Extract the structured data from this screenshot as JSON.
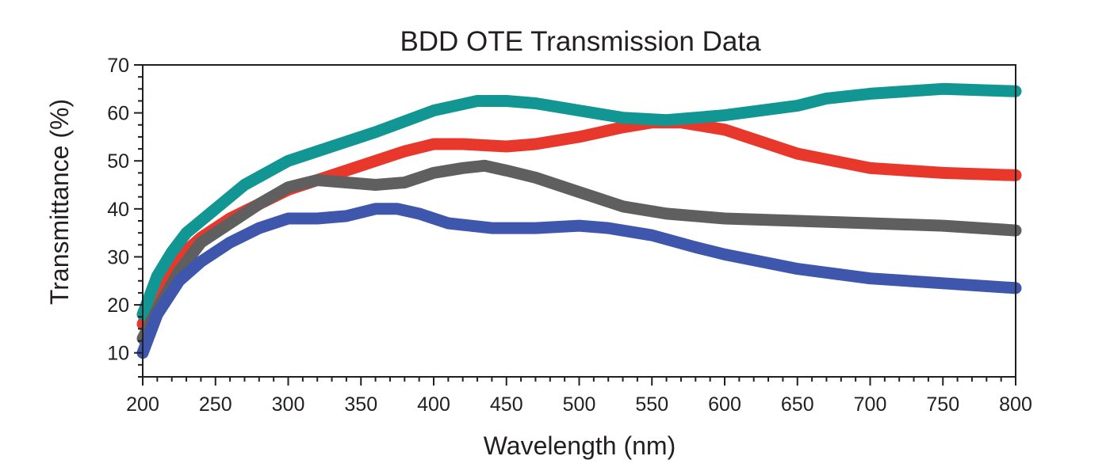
{
  "chart_data": {
    "type": "line",
    "title": "BDD OTE Transmission Data",
    "xlabel": "Wavelength (nm)",
    "ylabel": "Transmittance (%)",
    "xlim": [
      200,
      800
    ],
    "ylim": [
      5,
      70
    ],
    "x_ticks": [
      200,
      250,
      300,
      350,
      400,
      450,
      500,
      550,
      600,
      650,
      700,
      750,
      800
    ],
    "y_ticks": [
      10,
      20,
      30,
      40,
      50,
      60,
      70
    ],
    "grid": false,
    "legend": "none",
    "series": [
      {
        "color": "#e8382c",
        "x": [
          200,
          210,
          225,
          240,
          260,
          280,
          300,
          330,
          350,
          380,
          400,
          420,
          450,
          470,
          500,
          530,
          550,
          570,
          600,
          650,
          700,
          750,
          800
        ],
        "y": [
          16,
          22,
          30,
          34,
          38,
          41,
          44,
          47,
          49,
          52,
          53.5,
          53.5,
          53,
          53.5,
          55,
          57,
          58,
          58,
          56.5,
          51.5,
          48.5,
          47.5,
          47
        ]
      },
      {
        "color": "#119693",
        "x": [
          200,
          210,
          220,
          230,
          250,
          270,
          300,
          330,
          360,
          400,
          430,
          450,
          470,
          500,
          530,
          560,
          600,
          650,
          670,
          700,
          750,
          800
        ],
        "y": [
          18,
          26,
          31,
          35,
          40,
          45,
          50,
          53,
          56,
          60.5,
          62.5,
          62.5,
          62,
          60.5,
          59,
          58.5,
          59.5,
          61.5,
          63,
          64,
          65,
          64.5
        ]
      },
      {
        "color": "#5f5f5f",
        "x": [
          200,
          210,
          225,
          240,
          260,
          280,
          300,
          320,
          340,
          360,
          380,
          400,
          420,
          435,
          450,
          470,
          500,
          530,
          560,
          600,
          650,
          700,
          750,
          800
        ],
        "y": [
          13,
          19,
          27,
          33,
          37,
          41,
          44.5,
          46,
          45.5,
          45,
          45.5,
          47.5,
          48.5,
          49,
          48,
          46.5,
          43.5,
          40.5,
          39,
          38,
          37.5,
          37,
          36.5,
          35.5
        ]
      },
      {
        "color": "#3e56ab",
        "x": [
          200,
          210,
          225,
          240,
          260,
          280,
          300,
          320,
          340,
          360,
          375,
          390,
          410,
          440,
          470,
          500,
          520,
          550,
          580,
          600,
          650,
          700,
          750,
          800
        ],
        "y": [
          10,
          18,
          25,
          29,
          33,
          36,
          38,
          38,
          38.5,
          40,
          40,
          39,
          37,
          36,
          36,
          36.5,
          36,
          34.5,
          32,
          30.5,
          27.5,
          25.5,
          24.5,
          23.5
        ]
      }
    ]
  }
}
